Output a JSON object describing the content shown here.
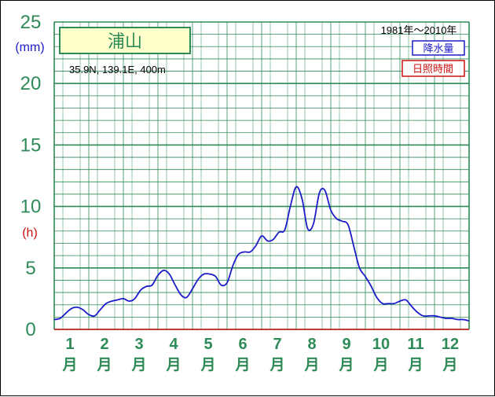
{
  "station": {
    "name": "浦山",
    "coords": "35.9N,  139.1E,  400m",
    "period": "1981年〜2010年"
  },
  "legend": {
    "precip": "降水量",
    "sunshine": "日照時間"
  },
  "units": {
    "left_top": "(mm)",
    "left_mid": "(h)"
  },
  "colors": {
    "grid": "#2e8b57",
    "precip_line": "#1c1cc8",
    "sunshine_line": "#cc1010",
    "axis_text": "#2e8b57"
  },
  "chart_data": {
    "type": "line",
    "ylim": [
      0,
      25
    ],
    "yticks": [
      "0",
      "5",
      "10",
      "15",
      "20",
      "25"
    ],
    "xticks": [
      {
        "num": "1",
        "unit": "月"
      },
      {
        "num": "2",
        "unit": "月"
      },
      {
        "num": "3",
        "unit": "月"
      },
      {
        "num": "4",
        "unit": "月"
      },
      {
        "num": "5",
        "unit": "月"
      },
      {
        "num": "6",
        "unit": "月"
      },
      {
        "num": "7",
        "unit": "月"
      },
      {
        "num": "8",
        "unit": "月"
      },
      {
        "num": "9",
        "unit": "月"
      },
      {
        "num": "10",
        "unit": "月"
      },
      {
        "num": "11",
        "unit": "月"
      },
      {
        "num": "12",
        "unit": "月"
      }
    ],
    "grid": true,
    "legend_position": "top-right",
    "series": [
      {
        "name": "降水量",
        "x": [
          0.0,
          0.17,
          0.33,
          0.5,
          0.67,
          0.83,
          1.0,
          1.17,
          1.33,
          1.5,
          1.67,
          1.83,
          2.0,
          2.17,
          2.33,
          2.5,
          2.67,
          2.83,
          3.0,
          3.17,
          3.33,
          3.5,
          3.67,
          3.83,
          4.0,
          4.17,
          4.33,
          4.5,
          4.67,
          4.83,
          5.0,
          5.17,
          5.33,
          5.5,
          5.67,
          5.83,
          6.0,
          6.17,
          6.33,
          6.5,
          6.67,
          6.83,
          7.0,
          7.17,
          7.33,
          7.5,
          7.67,
          7.83,
          8.0,
          8.17,
          8.33,
          8.5,
          8.67,
          8.83,
          9.0,
          9.17,
          9.33,
          9.5,
          9.67,
          9.83,
          10.0,
          10.17,
          10.33,
          10.5,
          10.67,
          10.83,
          11.0,
          11.17,
          11.33,
          11.5,
          11.67,
          11.83,
          12.0
        ],
        "values": [
          0.8,
          0.9,
          1.3,
          1.7,
          1.8,
          1.6,
          1.2,
          1.1,
          1.6,
          2.1,
          2.3,
          2.4,
          2.5,
          2.3,
          2.5,
          3.2,
          3.5,
          3.6,
          4.4,
          4.8,
          4.5,
          3.6,
          2.8,
          2.6,
          3.3,
          4.1,
          4.5,
          4.5,
          4.3,
          3.6,
          3.8,
          5.2,
          6.1,
          6.3,
          6.3,
          6.8,
          7.6,
          7.2,
          7.3,
          7.9,
          8.1,
          10.0,
          11.6,
          10.6,
          8.2,
          8.6,
          11.1,
          11.3,
          9.7,
          9.0,
          8.8,
          8.5,
          6.7,
          5.0,
          4.3,
          3.5,
          2.6,
          2.1,
          2.1,
          2.1,
          2.3,
          2.4,
          1.9,
          1.4,
          1.1,
          1.1,
          1.1,
          1.0,
          0.9,
          0.9,
          0.8,
          0.8,
          0.7
        ]
      },
      {
        "name": "日照時間",
        "x": [
          0,
          12
        ],
        "values": [
          0,
          0
        ]
      }
    ]
  }
}
